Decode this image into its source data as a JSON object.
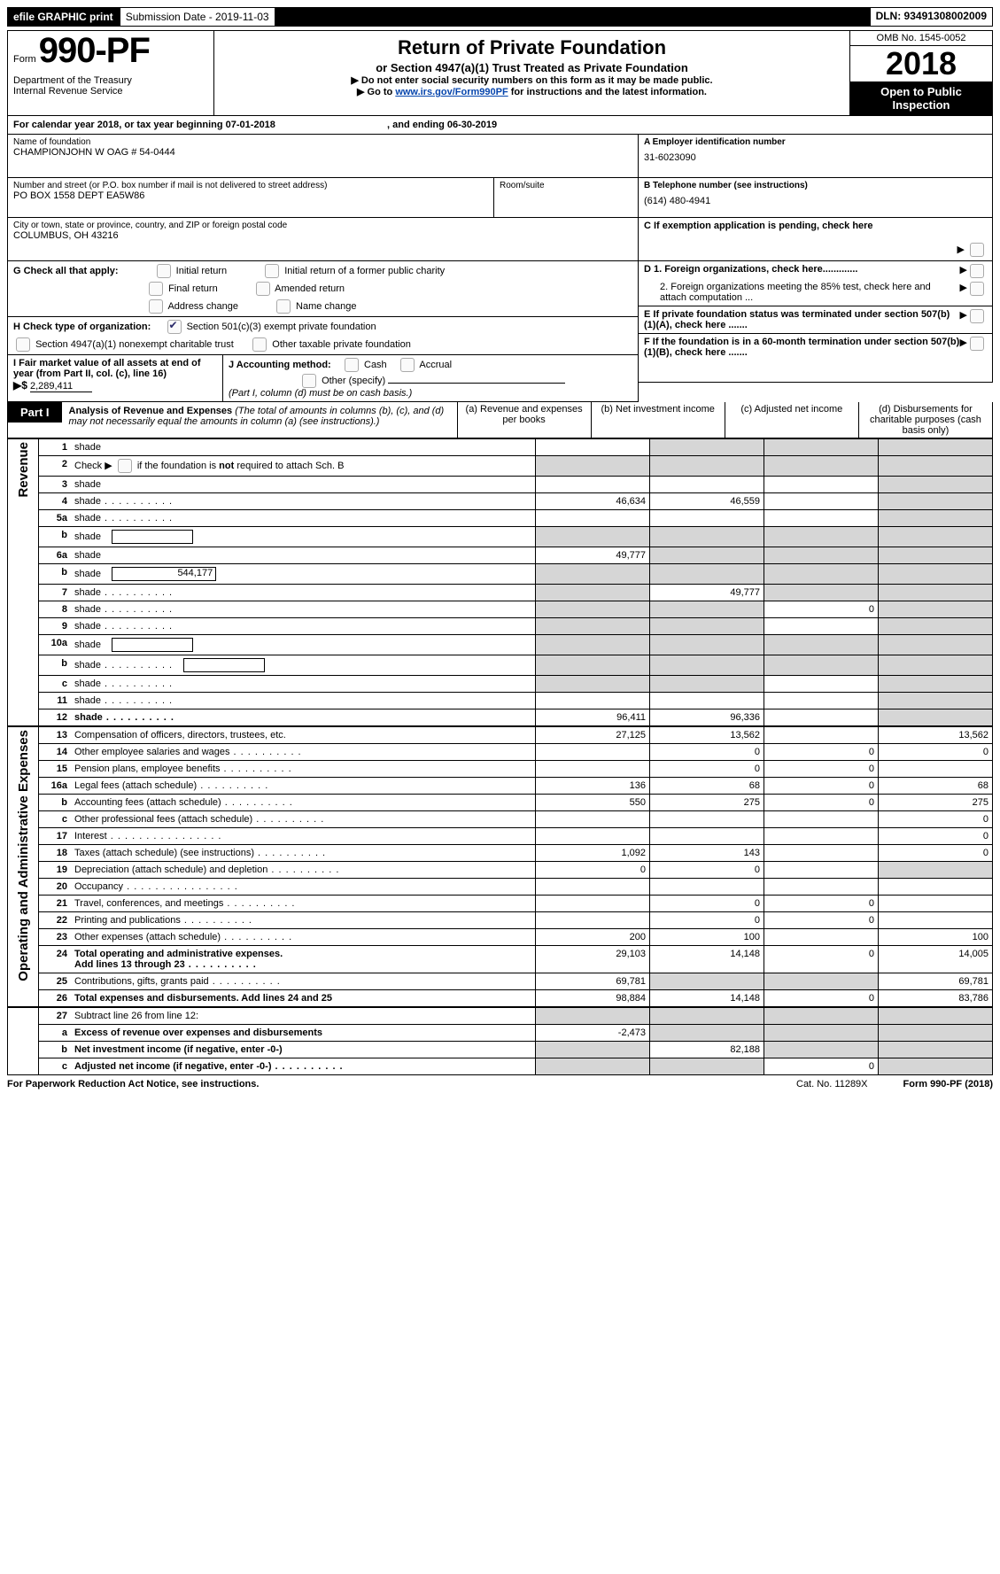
{
  "topbar": {
    "efile": "efile GRAPHIC print",
    "submission_label": "Submission Date - 2019-11-03",
    "dln_label": "DLN: 93491308002009"
  },
  "header": {
    "form_prefix": "Form",
    "form_no": "990-PF",
    "dept1": "Department of the Treasury",
    "dept2": "Internal Revenue Service",
    "title": "Return of Private Foundation",
    "subtitle": "or Section 4947(a)(1) Trust Treated as Private Foundation",
    "warn": "▶ Do not enter social security numbers on this form as it may be made public.",
    "goto_pre": "▶ Go to ",
    "goto_link": "www.irs.gov/Form990PF",
    "goto_post": " for instructions and the latest information.",
    "omb": "OMB No. 1545-0052",
    "year": "2018",
    "open": "Open to Public Inspection"
  },
  "calyear": {
    "text_a": "For calendar year 2018, or tax year beginning 07-01-2018",
    "text_b": ", and ending 06-30-2019"
  },
  "id": {
    "name_lbl": "Name of foundation",
    "name": "CHAMPIONJOHN W OAG # 54-0444",
    "addr_lbl": "Number and street (or P.O. box number if mail is not delivered to street address)",
    "addr": "PO BOX 1558 DEPT EA5W86",
    "room_lbl": "Room/suite",
    "city_lbl": "City or town, state or province, country, and ZIP or foreign postal code",
    "city": "COLUMBUS, OH  43216",
    "ein_lbl": "A Employer identification number",
    "ein": "31-6023090",
    "tel_lbl": "B Telephone number (see instructions)",
    "tel": "(614) 480-4941",
    "c_lbl": "C If exemption application is pending, check here",
    "d1": "D 1. Foreign organizations, check here.............",
    "d2": "2. Foreign organizations meeting the 85% test, check here and attach computation ...",
    "e": "E  If private foundation status was terminated under section 507(b)(1)(A), check here .......",
    "f": "F  If the foundation is in a 60-month termination under section 507(b)(1)(B), check here ......."
  },
  "g": {
    "lbl": "G Check all that apply:",
    "initial": "Initial return",
    "initial_former": "Initial return of a former public charity",
    "final": "Final return",
    "amended": "Amended return",
    "addr_change": "Address change",
    "name_change": "Name change"
  },
  "h": {
    "lbl": "H Check type of organization:",
    "s501": "Section 501(c)(3) exempt private foundation",
    "s4947": "Section 4947(a)(1) nonexempt charitable trust",
    "other_tax": "Other taxable private foundation"
  },
  "i": {
    "lbl": "I Fair market value of all assets at end of year (from Part II, col. (c), line 16)",
    "arrow": "▶$",
    "val": "2,289,411"
  },
  "j": {
    "lbl": "J Accounting method:",
    "cash": "Cash",
    "accrual": "Accrual",
    "other": "Other (specify)",
    "note": "(Part I, column (d) must be on cash basis.)"
  },
  "part1": {
    "tag": "Part I",
    "title": "Analysis of Revenue and Expenses",
    "note": "(The total of amounts in columns (b), (c), and (d) may not necessarily equal the amounts in column (a) (see instructions).)",
    "col_a": "(a)    Revenue and expenses per books",
    "col_b": "(b)    Net investment income",
    "col_c": "(c)    Adjusted net income",
    "col_d": "(d)    Disbursements for charitable purposes (cash basis only)"
  },
  "vlabels": {
    "revenue": "Revenue",
    "expenses": "Operating and Administrative Expenses"
  },
  "rows": [
    {
      "n": "1",
      "d": "shade",
      "a": "",
      "b": "shade",
      "c": "shade"
    },
    {
      "n": "2",
      "d": "shade",
      "a": "shade",
      "b": "shade",
      "c": "shade",
      "special": "checkline"
    },
    {
      "n": "3",
      "d": "shade",
      "a": "",
      "b": "",
      "c": ""
    },
    {
      "n": "4",
      "d": "shade",
      "a": "46,634",
      "b": "46,559",
      "c": "",
      "dots": true
    },
    {
      "n": "5a",
      "d": "shade",
      "a": "",
      "b": "",
      "c": "",
      "dots": true
    },
    {
      "n": "b",
      "d": "shade",
      "a": "shade",
      "b": "shade",
      "c": "shade",
      "inlinebox": true
    },
    {
      "n": "6a",
      "d": "shade",
      "a": "49,777",
      "b": "shade",
      "c": "shade"
    },
    {
      "n": "b",
      "d": "shade",
      "a": "shade",
      "b": "shade",
      "c": "shade",
      "inlineval": "544,177"
    },
    {
      "n": "7",
      "d": "shade",
      "a": "shade",
      "b": "49,777",
      "c": "shade",
      "dots": true
    },
    {
      "n": "8",
      "d": "shade",
      "a": "shade",
      "b": "shade",
      "c": "0",
      "dots": true
    },
    {
      "n": "9",
      "d": "shade",
      "a": "shade",
      "b": "shade",
      "c": "",
      "dots": true
    },
    {
      "n": "10a",
      "d": "shade",
      "a": "shade",
      "b": "shade",
      "c": "shade",
      "inlinebox": true
    },
    {
      "n": "b",
      "d": "shade",
      "a": "shade",
      "b": "shade",
      "c": "shade",
      "inlinebox": true,
      "dots": true
    },
    {
      "n": "c",
      "d": "shade",
      "a": "shade",
      "b": "shade",
      "c": "",
      "dots": true
    },
    {
      "n": "11",
      "d": "shade",
      "a": "",
      "b": "",
      "c": "",
      "dots": true
    },
    {
      "n": "12",
      "d": "shade",
      "a": "96,411",
      "b": "96,336",
      "c": "",
      "bold": true,
      "dots": true
    }
  ],
  "exp_rows": [
    {
      "n": "13",
      "d": "13,562",
      "a": "27,125",
      "b": "13,562",
      "c": ""
    },
    {
      "n": "14",
      "d": "0",
      "a": "",
      "b": "0",
      "c": "0",
      "dots": true
    },
    {
      "n": "15",
      "d": "",
      "a": "",
      "b": "0",
      "c": "0",
      "dots": true
    },
    {
      "n": "16a",
      "d": "68",
      "a": "136",
      "b": "68",
      "c": "0",
      "dots": true
    },
    {
      "n": "b",
      "d": "275",
      "a": "550",
      "b": "275",
      "c": "0",
      "dots": true
    },
    {
      "n": "c",
      "d": "0",
      "a": "",
      "b": "",
      "c": "",
      "dots": true
    },
    {
      "n": "17",
      "d": "0",
      "a": "",
      "b": "",
      "c": "",
      "dots": true,
      "dotslong": true
    },
    {
      "n": "18",
      "d": "0",
      "a": "1,092",
      "b": "143",
      "c": "",
      "dots": true
    },
    {
      "n": "19",
      "d": "shade",
      "a": "0",
      "b": "0",
      "c": "",
      "dots": true
    },
    {
      "n": "20",
      "d": "",
      "a": "",
      "b": "",
      "c": "",
      "dots": true,
      "dotslong": true
    },
    {
      "n": "21",
      "d": "",
      "a": "",
      "b": "0",
      "c": "0",
      "dots": true
    },
    {
      "n": "22",
      "d": "",
      "a": "",
      "b": "0",
      "c": "0",
      "dots": true
    },
    {
      "n": "23",
      "d": "100",
      "a": "200",
      "b": "100",
      "c": "",
      "dots": true
    },
    {
      "n": "24",
      "d": "14,005",
      "a": "29,103",
      "b": "14,148",
      "c": "0",
      "bold": true,
      "twoline": true,
      "dots": true
    },
    {
      "n": "25",
      "d": "69,781",
      "a": "69,781",
      "b": "shade",
      "c": "shade",
      "dots": true
    },
    {
      "n": "26",
      "d": "83,786",
      "a": "98,884",
      "b": "14,148",
      "c": "0",
      "bold": true
    }
  ],
  "bottom_rows": [
    {
      "n": "27",
      "d": "shade",
      "a": "shade",
      "b": "shade",
      "c": "shade"
    },
    {
      "n": "a",
      "d": "shade",
      "a": "-2,473",
      "b": "shade",
      "c": "shade",
      "bold": true
    },
    {
      "n": "b",
      "d": "shade",
      "a": "shade",
      "b": "82,188",
      "c": "shade",
      "bold": true
    },
    {
      "n": "c",
      "d": "shade",
      "a": "shade",
      "b": "shade",
      "c": "0",
      "bold": true,
      "dots": true
    }
  ],
  "footer": {
    "l": "For Paperwork Reduction Act Notice, see instructions.",
    "c": "Cat. No. 11289X",
    "r": "Form 990-PF (2018)"
  }
}
